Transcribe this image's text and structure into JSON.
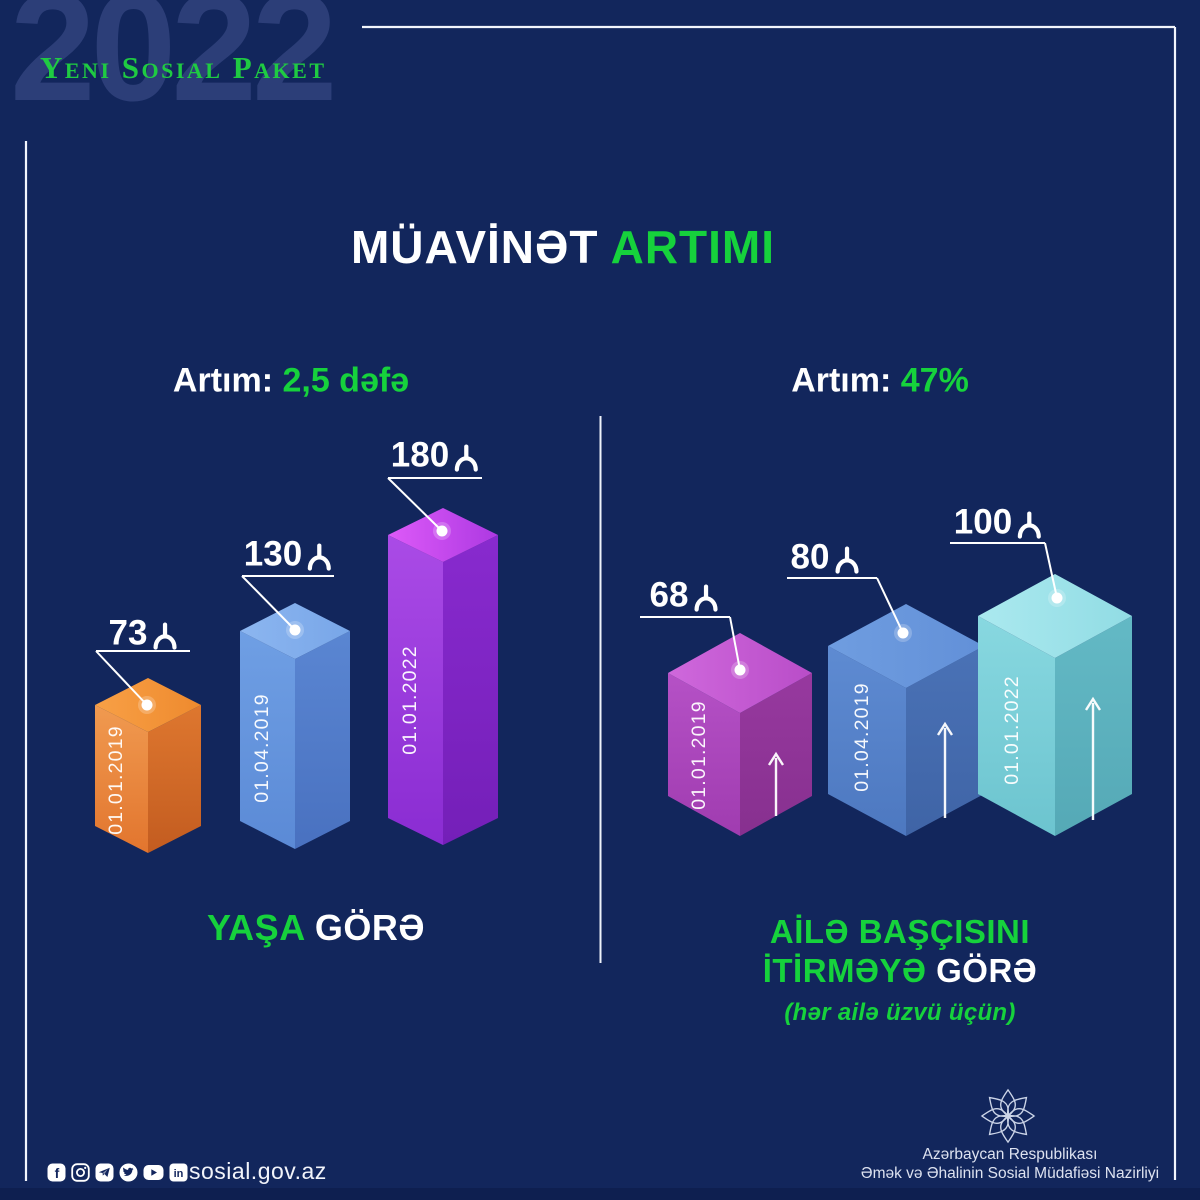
{
  "page": {
    "background": "#12265c",
    "accent_green": "#16d23c",
    "frame_color": "#f2f5fc",
    "year_watermark": "2022"
  },
  "header": {
    "brand": "Yeni Sosial Paket",
    "title_white": "MÜAVİNƏT",
    "title_green": "ARTIMI"
  },
  "chart_data": [
    {
      "type": "bar",
      "variant": "isometric-3d",
      "title": "Artım: 2,5 dəfə",
      "increase_label": "Artım:",
      "increase_value": "2,5 dəfə",
      "caption": {
        "green": "YAŞA",
        "white": "GÖRƏ"
      },
      "categories": [
        "01.01.2019",
        "01.04.2019",
        "01.01.2022"
      ],
      "values": [
        73,
        130,
        180
      ],
      "value_labels": [
        "73",
        "130",
        "180"
      ],
      "unit": "₼",
      "unit_name": "manat",
      "legend_position": "none",
      "bar_colors": [
        {
          "top1": "#f8a046",
          "top2": "#ee8a2e",
          "left1": "#f09a50",
          "left2": "#e2752e",
          "right1": "#de772f",
          "right2": "#c35c20"
        },
        {
          "top1": "#8cb6f0",
          "top2": "#78a6e8",
          "left1": "#6f9fe4",
          "left2": "#5b8ad6",
          "right1": "#5a86d2",
          "right2": "#4971c0"
        },
        {
          "top1": "#dd5af8",
          "top2": "#ad39e2",
          "left1": "#aa4be6",
          "left2": "#8a2cd2",
          "right1": "#882ace",
          "right2": "#741fb8"
        }
      ]
    },
    {
      "type": "bar",
      "variant": "isometric-3d",
      "title": "Artım: 47%",
      "increase_label": "Artım:",
      "increase_value": "47%",
      "caption": {
        "green_line1": "AİLƏ BAŞÇISINI",
        "green_line2": "İTİRMƏYƏ",
        "white_line2": "GÖRƏ",
        "note": "(hər ailə üzvü üçün)"
      },
      "categories": [
        "01.01.2019",
        "01.04.2019",
        "01.01.2022"
      ],
      "values": [
        68,
        80,
        100
      ],
      "value_labels": [
        "68",
        "80",
        "100"
      ],
      "unit": "₼",
      "unit_name": "manat",
      "growth_arrows": true,
      "legend_position": "none",
      "bar_colors": [
        {
          "top1": "#cf68dc",
          "top2": "#b94dc8",
          "left1": "#b551c6",
          "left2": "#a03cb0",
          "right1": "#97399f",
          "right2": "#87308f"
        },
        {
          "top1": "#6f9de0",
          "top2": "#6290d8",
          "left1": "#5e8bd2",
          "left2": "#4d78c0",
          "right1": "#4a72b6",
          "right2": "#3f64a6"
        },
        {
          "top1": "#abe9ef",
          "top2": "#91dce4",
          "left1": "#88d8e0",
          "left2": "#6cc4cf",
          "right1": "#63b9c5",
          "right2": "#55a9b6"
        }
      ]
    }
  ],
  "footer": {
    "social_icons": [
      "facebook",
      "instagram",
      "telegram",
      "twitter",
      "youtube",
      "linkedin"
    ],
    "website": "sosial.gov.az",
    "ministry_line1": "Azərbaycan Respublikası",
    "ministry_line2": "Əmək və Əhalinin Sosial Müdafiəsi Nazirliyi"
  }
}
